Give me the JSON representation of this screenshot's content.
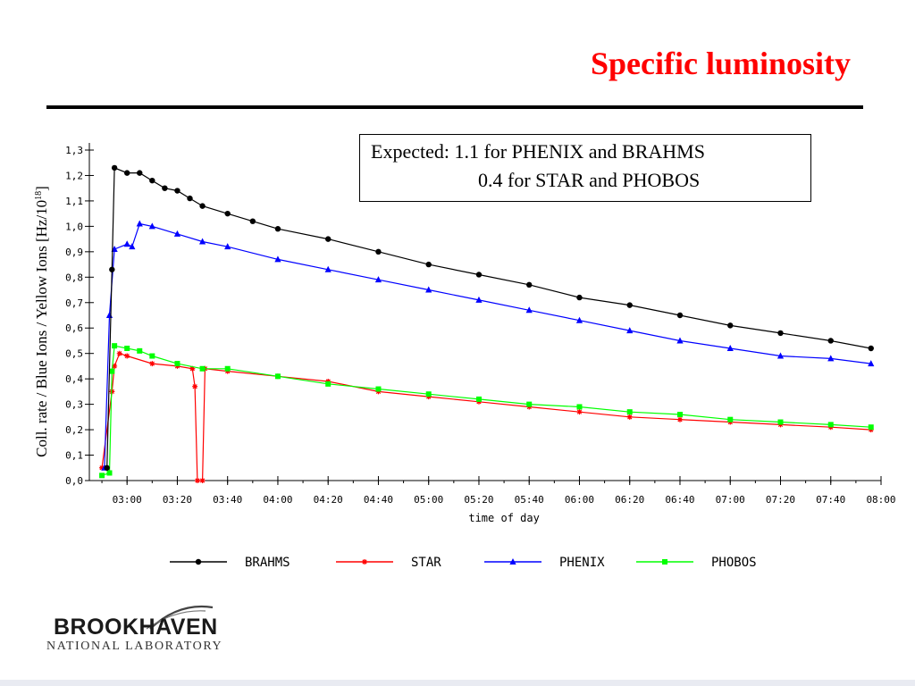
{
  "slide": {
    "title": "Specific luminosity"
  },
  "note": {
    "line1": "Expected: 1.1 for PHENIX and BRAHMS",
    "line2": "0.4 for STAR and PHOBOS"
  },
  "logo": {
    "line1": "BROOKHAVEN",
    "line2": "NATIONAL LABORATORY"
  },
  "chart_data": {
    "type": "line",
    "title": "Specific luminosity",
    "ylabel_main": "Coll. rate / Blue Ions / Yellow Ions [Hz/10",
    "ylabel_exp": "18",
    "ylabel_end": "]",
    "xlabel": "time of day",
    "xlim": [
      "02:45",
      "08:00"
    ],
    "ylim": [
      0,
      1.3
    ],
    "x_ticks": [
      "03:00",
      "03:20",
      "03:40",
      "04:00",
      "04:20",
      "04:40",
      "05:00",
      "05:20",
      "05:40",
      "06:00",
      "06:20",
      "06:40",
      "07:00",
      "07:20",
      "07:40",
      "08:00"
    ],
    "y_ticks": [
      "0,0",
      "0,1",
      "0,2",
      "0,3",
      "0,4",
      "0,5",
      "0,6",
      "0,7",
      "0,8",
      "0,9",
      "1,0",
      "1,1",
      "1,2",
      "1,3"
    ],
    "grid": false,
    "legend_position": "bottom",
    "series": [
      {
        "name": "BRAHMS",
        "color": "#000000",
        "marker": "circle",
        "points": [
          [
            "02:52",
            0.05
          ],
          [
            "02:54",
            0.83
          ],
          [
            "02:55",
            1.23
          ],
          [
            "03:00",
            1.21
          ],
          [
            "03:05",
            1.21
          ],
          [
            "03:10",
            1.18
          ],
          [
            "03:15",
            1.15
          ],
          [
            "03:20",
            1.14
          ],
          [
            "03:25",
            1.11
          ],
          [
            "03:30",
            1.08
          ],
          [
            "03:40",
            1.05
          ],
          [
            "03:50",
            1.02
          ],
          [
            "04:00",
            0.99
          ],
          [
            "04:20",
            0.95
          ],
          [
            "04:40",
            0.9
          ],
          [
            "05:00",
            0.85
          ],
          [
            "05:20",
            0.81
          ],
          [
            "05:40",
            0.77
          ],
          [
            "06:00",
            0.72
          ],
          [
            "06:20",
            0.69
          ],
          [
            "06:40",
            0.65
          ],
          [
            "07:00",
            0.61
          ],
          [
            "07:20",
            0.58
          ],
          [
            "07:40",
            0.55
          ],
          [
            "07:56",
            0.52
          ]
        ]
      },
      {
        "name": "STAR",
        "color": "#ff0000",
        "marker": "asterisk",
        "points": [
          [
            "02:50",
            0.05
          ],
          [
            "02:54",
            0.35
          ],
          [
            "02:55",
            0.45
          ],
          [
            "02:57",
            0.5
          ],
          [
            "03:00",
            0.49
          ],
          [
            "03:10",
            0.46
          ],
          [
            "03:20",
            0.45
          ],
          [
            "03:26",
            0.44
          ],
          [
            "03:27",
            0.37
          ],
          [
            "03:28",
            0.0
          ],
          [
            "03:30",
            0.0
          ],
          [
            "03:31",
            0.44
          ],
          [
            "03:40",
            0.43
          ],
          [
            "04:00",
            0.41
          ],
          [
            "04:20",
            0.39
          ],
          [
            "04:40",
            0.35
          ],
          [
            "05:00",
            0.33
          ],
          [
            "05:20",
            0.31
          ],
          [
            "05:40",
            0.29
          ],
          [
            "06:00",
            0.27
          ],
          [
            "06:20",
            0.25
          ],
          [
            "06:40",
            0.24
          ],
          [
            "07:00",
            0.23
          ],
          [
            "07:20",
            0.22
          ],
          [
            "07:40",
            0.21
          ],
          [
            "07:56",
            0.2
          ]
        ]
      },
      {
        "name": "PHENIX",
        "color": "#0000ff",
        "marker": "triangle",
        "points": [
          [
            "02:51",
            0.05
          ],
          [
            "02:53",
            0.65
          ],
          [
            "02:55",
            0.91
          ],
          [
            "03:00",
            0.93
          ],
          [
            "03:02",
            0.92
          ],
          [
            "03:05",
            1.01
          ],
          [
            "03:10",
            1.0
          ],
          [
            "03:20",
            0.97
          ],
          [
            "03:30",
            0.94
          ],
          [
            "03:40",
            0.92
          ],
          [
            "04:00",
            0.87
          ],
          [
            "04:20",
            0.83
          ],
          [
            "04:40",
            0.79
          ],
          [
            "05:00",
            0.75
          ],
          [
            "05:20",
            0.71
          ],
          [
            "05:40",
            0.67
          ],
          [
            "06:00",
            0.63
          ],
          [
            "06:20",
            0.59
          ],
          [
            "06:40",
            0.55
          ],
          [
            "07:00",
            0.52
          ],
          [
            "07:20",
            0.49
          ],
          [
            "07:40",
            0.48
          ],
          [
            "07:56",
            0.46
          ]
        ]
      },
      {
        "name": "PHOBOS",
        "color": "#00ff00",
        "marker": "square",
        "points": [
          [
            "02:50",
            0.02
          ],
          [
            "02:53",
            0.03
          ],
          [
            "02:54",
            0.43
          ],
          [
            "02:55",
            0.53
          ],
          [
            "03:00",
            0.52
          ],
          [
            "03:05",
            0.51
          ],
          [
            "03:10",
            0.49
          ],
          [
            "03:20",
            0.46
          ],
          [
            "03:30",
            0.44
          ],
          [
            "03:40",
            0.44
          ],
          [
            "04:00",
            0.41
          ],
          [
            "04:20",
            0.38
          ],
          [
            "04:40",
            0.36
          ],
          [
            "05:00",
            0.34
          ],
          [
            "05:20",
            0.32
          ],
          [
            "05:40",
            0.3
          ],
          [
            "06:00",
            0.29
          ],
          [
            "06:20",
            0.27
          ],
          [
            "06:40",
            0.26
          ],
          [
            "07:00",
            0.24
          ],
          [
            "07:20",
            0.23
          ],
          [
            "07:40",
            0.22
          ],
          [
            "07:56",
            0.21
          ]
        ]
      }
    ]
  }
}
